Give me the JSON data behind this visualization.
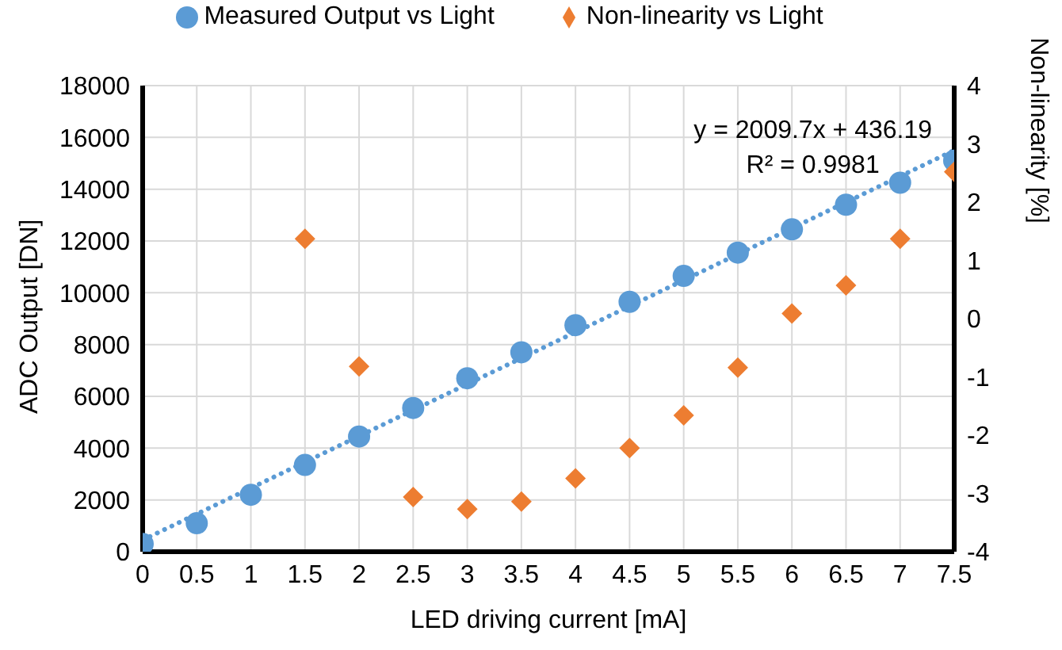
{
  "chart_data": {
    "type": "scatter",
    "xlabel": "LED driving current [mA]",
    "ylabel": "ADC Output [DN]",
    "y2label": "Non-linearity [%]",
    "x": [
      0,
      0.5,
      1,
      1.5,
      2,
      2.5,
      3,
      3.5,
      4,
      4.5,
      5,
      5.5,
      6,
      6.5,
      7,
      7.5
    ],
    "series": [
      {
        "name": "Measured Output vs Light",
        "color": "#5b9bd5",
        "marker": "circle",
        "values": [
          300,
          1100,
          2200,
          3350,
          4450,
          5550,
          6700,
          7700,
          8750,
          9650,
          10650,
          11550,
          12450,
          13400,
          14250,
          15100
        ]
      },
      {
        "name": "Non-linearity vs Light",
        "color": "#ed7d31",
        "marker": "diamond",
        "axis": "y2",
        "values": [
          null,
          null,
          null,
          1.37,
          -0.82,
          -3.06,
          -3.27,
          -3.14,
          -2.74,
          -2.22,
          -1.66,
          -0.84,
          0.09,
          0.57,
          1.37,
          2.52
        ]
      },
      {
        "type": "line",
        "color": "#5b9bd5",
        "line_style": "dotted",
        "marker": "none",
        "x": [
          0,
          7.5
        ],
        "values": [
          450,
          15500
        ]
      }
    ],
    "xlim": [
      0,
      7.5
    ],
    "xticks": [
      0,
      0.5,
      1,
      1.5,
      2,
      2.5,
      3,
      3.5,
      4,
      4.5,
      5,
      5.5,
      6,
      6.5,
      7,
      7.5
    ],
    "ylim": [
      0,
      18000
    ],
    "yticks": [
      0,
      2000,
      4000,
      6000,
      8000,
      10000,
      12000,
      14000,
      16000,
      18000
    ],
    "y2lim": [
      -4,
      4
    ],
    "y2ticks": [
      -4,
      -3,
      -2,
      -1,
      0,
      1,
      2,
      3,
      4
    ],
    "grid": true,
    "legend": "top",
    "annotations": [
      "y = 2009.7x + 436.19",
      "R² = 0.9981"
    ]
  }
}
